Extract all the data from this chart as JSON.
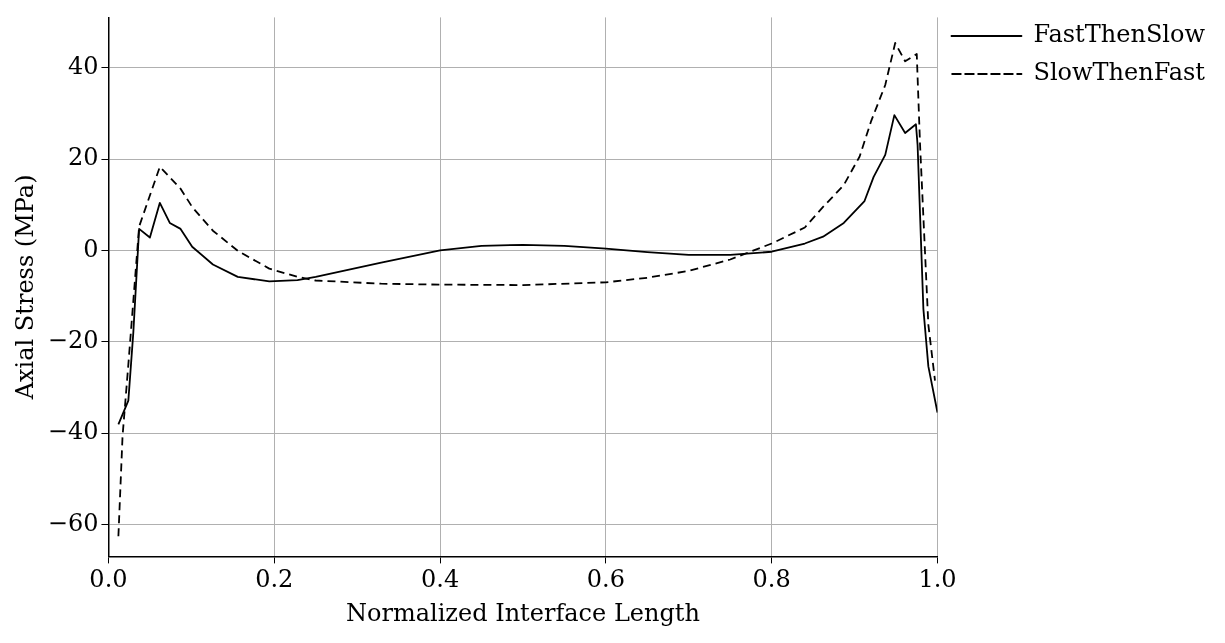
{
  "chart_data": {
    "type": "line",
    "xlabel": "Normalized Interface Length",
    "ylabel": "Axial Stress (MPa)",
    "xlim": [
      0,
      1
    ],
    "ylim": [
      -67,
      51
    ],
    "xticks": [
      {
        "value": 0,
        "label": "0.0"
      },
      0.2,
      0.4,
      0.6,
      0.8,
      {
        "value": 1,
        "label": "1.0"
      }
    ],
    "yticks": [
      -60,
      -40,
      -20,
      0,
      20,
      40
    ],
    "grid": true,
    "legend": "top right",
    "marker": "none",
    "series": [
      {
        "name": "FastThenSlow",
        "color": "#000000",
        "line_style": "solid",
        "x": [
          0.012,
          0.024,
          0.03,
          0.037,
          0.05,
          0.062,
          0.074,
          0.087,
          0.101,
          0.126,
          0.156,
          0.194,
          0.228,
          0.25,
          0.329,
          0.4,
          0.45,
          0.5,
          0.55,
          0.6,
          0.65,
          0.7,
          0.75,
          0.8,
          0.84,
          0.862,
          0.887,
          0.912,
          0.923,
          0.937,
          0.948,
          0.961,
          0.974,
          0.976,
          0.983,
          0.989,
          1.0
        ],
        "values": [
          -38.1,
          -32.9,
          -18,
          4.7,
          2.8,
          10.4,
          6.0,
          4.7,
          0.8,
          -3.1,
          -5.8,
          -6.8,
          -6.5,
          -5.8,
          -2.7,
          0,
          1,
          1.2,
          1,
          0.4,
          -0.4,
          -1,
          -1,
          -0.3,
          1.5,
          3.0,
          6.0,
          10.8,
          16.1,
          20.9,
          29.6,
          25.7,
          27.6,
          23.1,
          -12.8,
          -25.4,
          -35.5
        ]
      },
      {
        "name": "SlowThenFast",
        "color": "#000000",
        "line_style": "dashed",
        "x": [
          0.012,
          0.017,
          0.024,
          0.037,
          0.062,
          0.087,
          0.101,
          0.126,
          0.156,
          0.194,
          0.228,
          0.25,
          0.329,
          0.4,
          0.5,
          0.6,
          0.65,
          0.7,
          0.75,
          0.8,
          0.84,
          0.862,
          0.887,
          0.906,
          0.92,
          0.937,
          0.949,
          0.961,
          0.975,
          0.979,
          0.989,
          0.997
        ],
        "values": [
          -62.6,
          -40.7,
          -25,
          5.2,
          18.3,
          13.5,
          9.5,
          4.3,
          -0.1,
          -4.0,
          -5.8,
          -6.6,
          -7.3,
          -7.5,
          -7.6,
          -7,
          -6,
          -4.5,
          -2,
          1.5,
          5,
          9.5,
          14.3,
          20.5,
          28.3,
          36.2,
          45.4,
          41.4,
          43,
          23.1,
          -16.3,
          -28.5
        ]
      }
    ]
  }
}
